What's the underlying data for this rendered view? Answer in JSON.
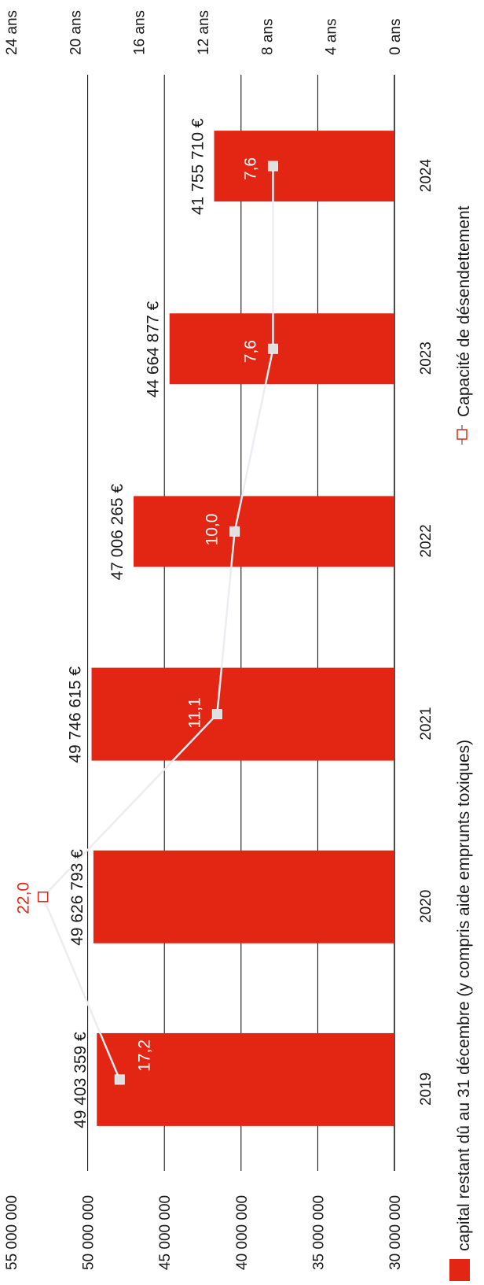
{
  "chart_data": {
    "type": "bar",
    "categories": [
      "2019",
      "2020",
      "2021",
      "2022",
      "2023",
      "2024"
    ],
    "series": [
      {
        "name": "capital restant dû au 31 décembre (y compris aide emprunts toxiques)",
        "type": "bar",
        "axis": "left",
        "values": [
          49403359,
          49626793,
          49746615,
          47006265,
          44664877,
          41755710
        ],
        "labels": [
          "49 403 359 €",
          "49 626 793 €",
          "49 746 615 €",
          "47 006 265 €",
          "44 664 877 €",
          "41 755 710 €"
        ]
      },
      {
        "name": "Capacité de désendettement",
        "type": "line",
        "axis": "right",
        "values": [
          17.2,
          22.0,
          11.1,
          10.0,
          7.6,
          7.6
        ],
        "labels": [
          "17,2",
          "22,0",
          "11,1",
          "10,0",
          "7,6",
          "7,6"
        ]
      }
    ],
    "left_axis": {
      "ylim": [
        30000000,
        55000000
      ],
      "ticks": [
        "30 000 000",
        "35 000 000",
        "40 000 000",
        "45 000 000",
        "50 000 000",
        "55 000 000"
      ]
    },
    "right_axis": {
      "ylim": [
        0,
        24
      ],
      "ticks": [
        "0 ans",
        "4 ans",
        "8 ans",
        "12 ans",
        "16 ans",
        "20 ans",
        "24 ans"
      ]
    },
    "grid": true,
    "legend_position": "bottom",
    "orientation": "rotated-90-clockwise",
    "colors": {
      "bar": "#e32613",
      "line": "#ececf2",
      "marker": "#e0e0e0",
      "highlight": "#e32613",
      "grid": "#000000",
      "text": "#1a1a1a"
    }
  }
}
